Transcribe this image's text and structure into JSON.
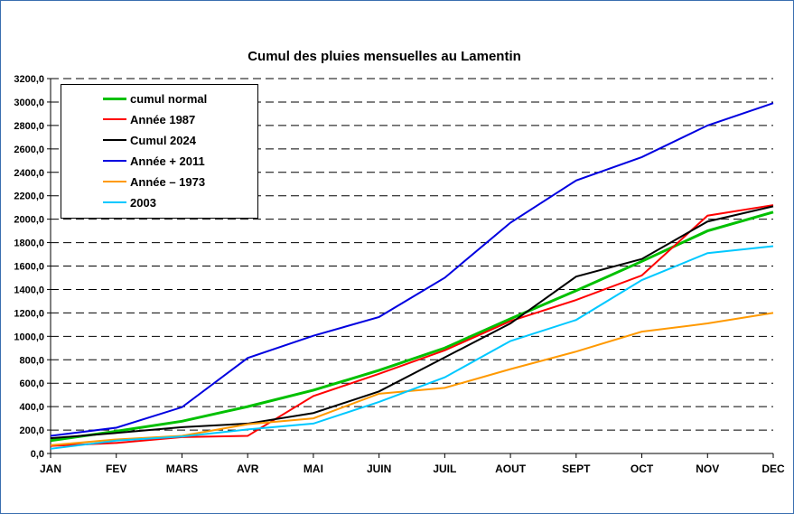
{
  "chart_data": {
    "type": "line",
    "title": "Cumul des pluies mensuelles au Lamentin",
    "categories": [
      "JAN",
      "FEV",
      "MARS",
      "AVR",
      "MAI",
      "JUIN",
      "JUIL",
      "AOUT",
      "SEPT",
      "OCT",
      "NOV",
      "DEC"
    ],
    "ylim": [
      0,
      3200
    ],
    "yticks": [
      "0,0",
      "200,0",
      "400,0",
      "600,0",
      "800,0",
      "1000,0",
      "1200,0",
      "1400,0",
      "1600,0",
      "1800,0",
      "2000,0",
      "2200,0",
      "2400,0",
      "2600,0",
      "2800,0",
      "3000,0",
      "3200,0"
    ],
    "grid": "horizontal dashed",
    "legend_position": "top-left",
    "series": [
      {
        "name": "cumul normal",
        "color": "#00c000",
        "values": [
          110,
          190,
          275,
          400,
          540,
          710,
          900,
          1150,
          1390,
          1640,
          1900,
          2060
        ]
      },
      {
        "name": "Année 1987",
        "color": "#ff0000",
        "values": [
          65,
          90,
          140,
          150,
          490,
          680,
          880,
          1130,
          1310,
          1520,
          2030,
          2120
        ]
      },
      {
        "name": "Cumul 2024",
        "color": "#000000",
        "values": [
          130,
          175,
          225,
          255,
          345,
          530,
          820,
          1110,
          1510,
          1660,
          1980,
          2110
        ]
      },
      {
        "name": "Année + 2011",
        "color": "#0000e0",
        "values": [
          150,
          220,
          395,
          815,
          1005,
          1165,
          1500,
          1970,
          2330,
          2530,
          2800,
          2990
        ]
      },
      {
        "name": "Année – 1973",
        "color": "#ff9900",
        "values": [
          70,
          120,
          150,
          250,
          300,
          510,
          560,
          720,
          870,
          1040,
          1110,
          1200
        ]
      },
      {
        "name": "2003",
        "color": "#00c8ff",
        "values": [
          40,
          110,
          145,
          205,
          255,
          440,
          650,
          960,
          1140,
          1480,
          1710,
          1770
        ]
      }
    ]
  }
}
